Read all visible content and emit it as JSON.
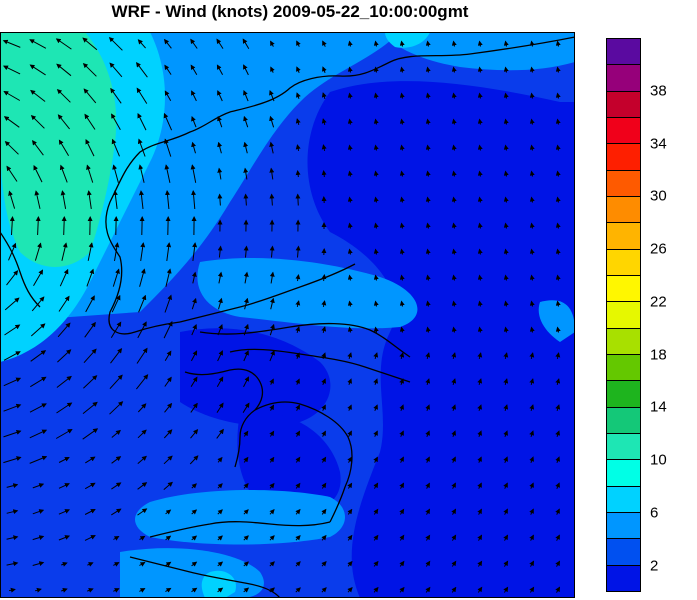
{
  "title": "WRF - Wind (knots) 2009-05-22_10:00:00gmt",
  "colorbar": {
    "colors_top_to_bottom": [
      "#5a0aa0",
      "#96007a",
      "#c4002c",
      "#f0001a",
      "#fe1f00",
      "#fe5a00",
      "#fe8c00",
      "#ffb400",
      "#ffd600",
      "#fff700",
      "#e6f800",
      "#a8e000",
      "#64c800",
      "#1eb41e",
      "#14c878",
      "#1ee6b4",
      "#00ffe6",
      "#00d2ff",
      "#0096ff",
      "#0050f0",
      "#0014e6"
    ],
    "labels": [
      "38",
      "34",
      "30",
      "26",
      "22",
      "18",
      "14",
      "10",
      "6",
      "2"
    ]
  },
  "map": {
    "background_color": "#0a3ceb",
    "wind_field": "rotating flow in the north-west, weak winds elsewhere",
    "coastline_color": "#000000"
  }
}
